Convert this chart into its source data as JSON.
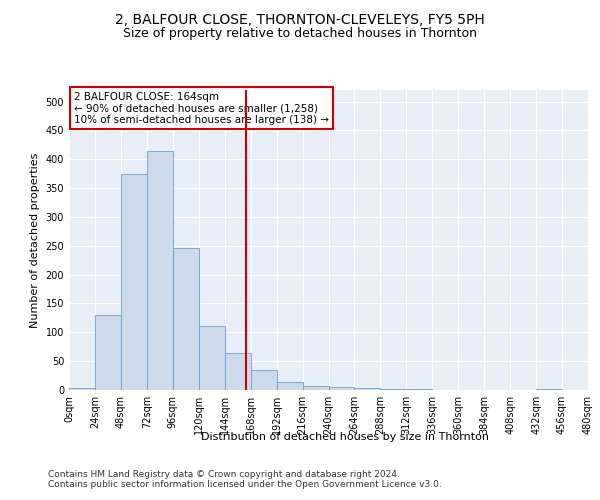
{
  "title": "2, BALFOUR CLOSE, THORNTON-CLEVELEYS, FY5 5PH",
  "subtitle": "Size of property relative to detached houses in Thornton",
  "xlabel": "Distribution of detached houses by size in Thornton",
  "ylabel": "Number of detached properties",
  "bar_color": "#ccdaec",
  "bar_edge_color": "#6a9fcb",
  "vline_x": 164,
  "vline_color": "#cc0000",
  "annotation_title": "2 BALFOUR CLOSE: 164sqm",
  "annotation_line1": "← 90% of detached houses are smaller (1,258)",
  "annotation_line2": "10% of semi-detached houses are larger (138) →",
  "annotation_box_color": "#cc0000",
  "bins": [
    0,
    24,
    48,
    72,
    96,
    120,
    144,
    168,
    192,
    216,
    240,
    264,
    288,
    312,
    336,
    360,
    384,
    408,
    432,
    456,
    480
  ],
  "bar_heights": [
    4,
    130,
    375,
    415,
    246,
    111,
    65,
    35,
    14,
    7,
    5,
    4,
    2,
    1,
    0,
    0,
    0,
    0,
    2,
    0
  ],
  "ylim": [
    0,
    520
  ],
  "yticks": [
    0,
    50,
    100,
    150,
    200,
    250,
    300,
    350,
    400,
    450,
    500
  ],
  "background_color": "#e8eef6",
  "footer1": "Contains HM Land Registry data © Crown copyright and database right 2024.",
  "footer2": "Contains public sector information licensed under the Open Government Licence v3.0.",
  "title_fontsize": 10,
  "subtitle_fontsize": 9,
  "axis_label_fontsize": 8,
  "tick_fontsize": 7,
  "annotation_fontsize": 7.5,
  "footer_fontsize": 6.5
}
